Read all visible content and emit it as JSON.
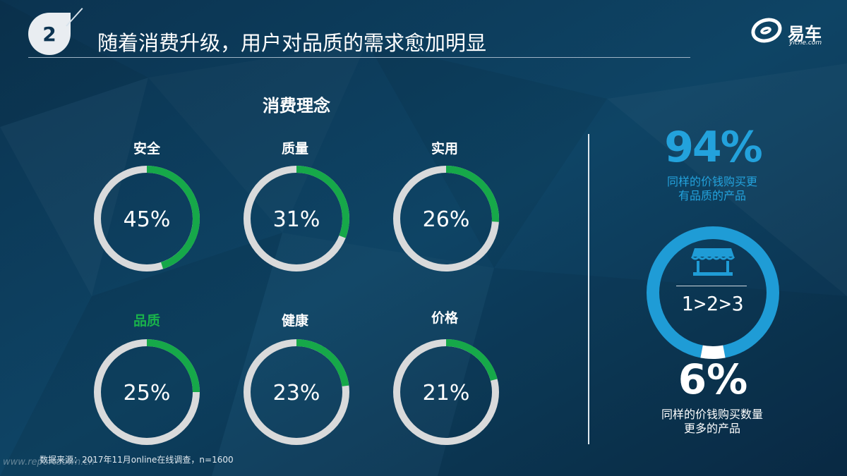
{
  "header": {
    "number": "2",
    "title": "随着消费升级，用户对品质的需求愈加明显"
  },
  "logo": {
    "name": "易车",
    "sub": "yiche.com"
  },
  "chart_data": {
    "type": "donut",
    "title": "消费理念",
    "unit": "%",
    "categories": [
      "安全",
      "质量",
      "实用",
      "品质",
      "健康",
      "价格"
    ],
    "values": [
      45,
      31,
      26,
      25,
      23,
      21
    ],
    "value_labels": [
      "45%",
      "31%",
      "26%",
      "25%",
      "23%",
      "21%"
    ],
    "highlighted_category": "品质",
    "colors": {
      "fill": "#16a849",
      "track": "#d9dadb",
      "highlight_text": "#19b24b"
    }
  },
  "right_panel": {
    "top_pct": "94%",
    "top_desc_line1": "同样的价钱购买更",
    "top_desc_line2": "有品质的产品",
    "ratio": "1>2>3",
    "bottom_pct": "6%",
    "bottom_desc_line1": "同样的价钱购买数量",
    "bottom_desc_line2": "更多的产品",
    "donut_values": [
      94,
      6
    ],
    "colors": {
      "major": "#1f9cd6",
      "minor": "#ffffff"
    },
    "icon": "storefront-icon"
  },
  "footer": {
    "source": "数据来源：2017年11月online在线调查，n=1600",
    "watermark": "www.reportdown.cn"
  }
}
